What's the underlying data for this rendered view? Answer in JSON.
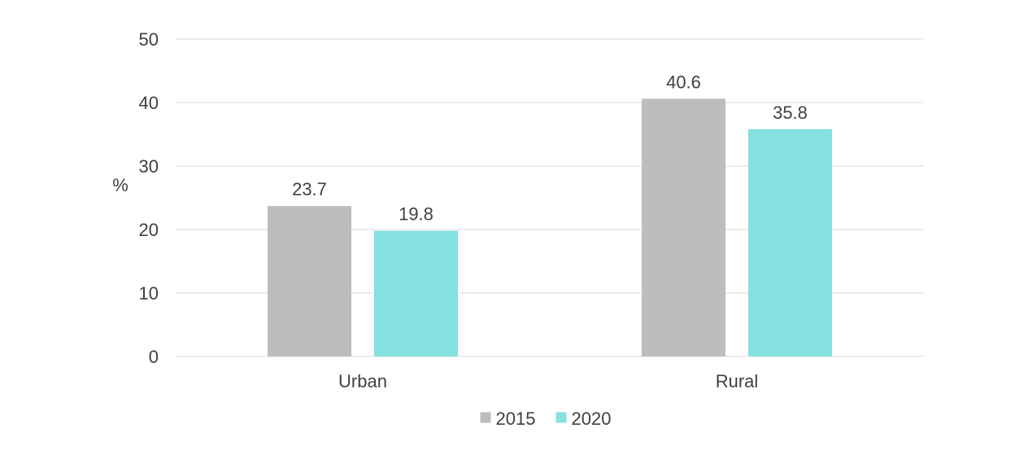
{
  "chart_data": {
    "type": "bar",
    "categories": [
      "Urban",
      "Rural"
    ],
    "series": [
      {
        "name": "2015",
        "values": [
          23.7,
          40.6
        ],
        "color": "#bdbdbd"
      },
      {
        "name": "2020",
        "values": [
          19.8,
          35.8
        ],
        "color": "#86e0e0"
      }
    ],
    "ylabel": "%",
    "ylim": [
      0,
      50
    ],
    "yticks": [
      0,
      10,
      20,
      30,
      40,
      50
    ],
    "grid": true,
    "legend_position": "bottom",
    "gridline_color": "#d9d9d9",
    "data_labels": true
  }
}
